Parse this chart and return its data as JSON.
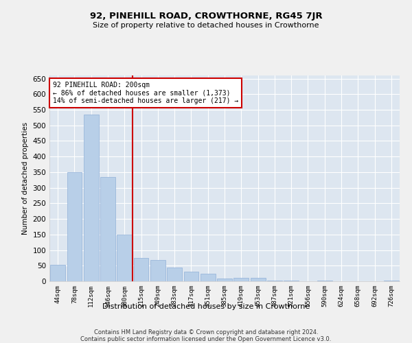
{
  "title": "92, PINEHILL ROAD, CROWTHORNE, RG45 7JR",
  "subtitle": "Size of property relative to detached houses in Crowthorne",
  "xlabel": "Distribution of detached houses by size in Crowthorne",
  "ylabel": "Number of detached properties",
  "bar_color": "#b8cfe8",
  "bar_edge_color": "#90b0d8",
  "background_color": "#dde6f0",
  "grid_color": "#ffffff",
  "categories": [
    "44sqm",
    "78sqm",
    "112sqm",
    "146sqm",
    "180sqm",
    "215sqm",
    "249sqm",
    "283sqm",
    "317sqm",
    "351sqm",
    "385sqm",
    "419sqm",
    "453sqm",
    "487sqm",
    "521sqm",
    "556sqm",
    "590sqm",
    "624sqm",
    "658sqm",
    "692sqm",
    "726sqm"
  ],
  "values": [
    52,
    350,
    535,
    335,
    150,
    75,
    68,
    45,
    30,
    25,
    8,
    10,
    10,
    2,
    2,
    0,
    2,
    0,
    0,
    0,
    2
  ],
  "ylim": [
    0,
    660
  ],
  "yticks": [
    0,
    50,
    100,
    150,
    200,
    250,
    300,
    350,
    400,
    450,
    500,
    550,
    600,
    650
  ],
  "property_line_color": "#cc0000",
  "annotation_text": "92 PINEHILL ROAD: 200sqm\n← 86% of detached houses are smaller (1,373)\n14% of semi-detached houses are larger (217) →",
  "annotation_box_color": "#ffffff",
  "annotation_box_edge": "#cc0000",
  "footnote": "Contains HM Land Registry data © Crown copyright and database right 2024.\nContains public sector information licensed under the Open Government Licence v3.0."
}
